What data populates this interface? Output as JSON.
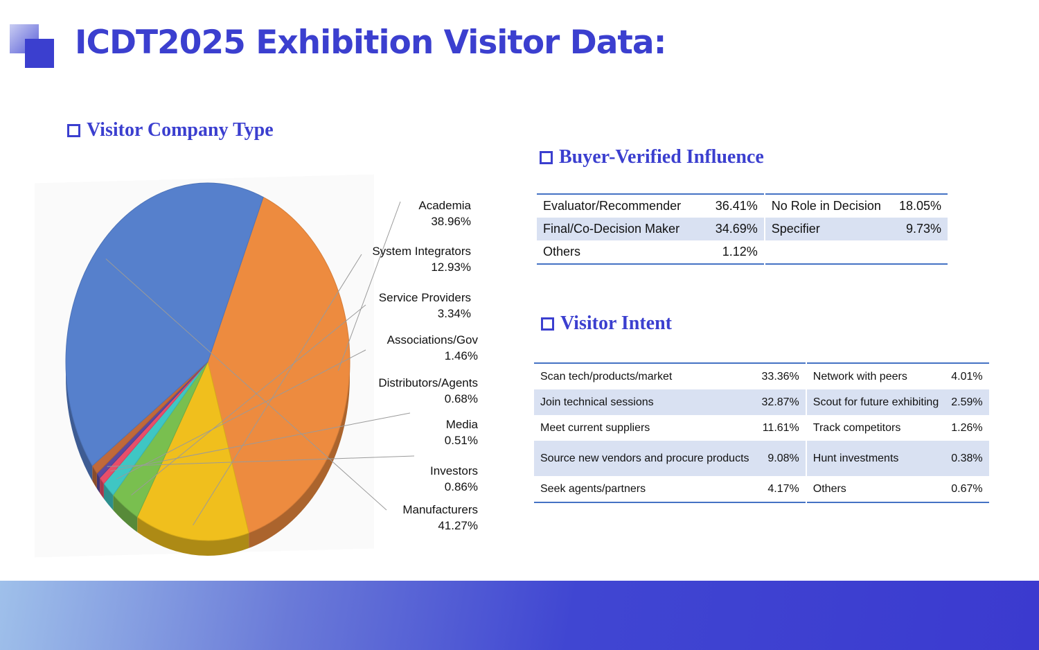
{
  "header": {
    "title": "ICDT2025 Exhibition Visitor Data:"
  },
  "sections": {
    "company_type": "Visitor Company Type",
    "influence": "Buyer-Verified Influence",
    "intent": "Visitor Intent"
  },
  "chart_data": {
    "type": "pie",
    "title": "Visitor Company Type",
    "slices": [
      {
        "label": "Academia",
        "value": 38.96,
        "display": "38.96%",
        "color": "#ed8b3f"
      },
      {
        "label": "System Integrators",
        "value": 12.93,
        "display": "12.93%",
        "color": "#f0bf1d"
      },
      {
        "label": "Service Providers",
        "value": 3.34,
        "display": "3.34%",
        "color": "#79bf4f"
      },
      {
        "label": "Associations/Gov",
        "value": 1.46,
        "display": "1.46%",
        "color": "#3fc6c4"
      },
      {
        "label": "Distributors/Agents",
        "value": 0.68,
        "display": "0.68%",
        "color": "#e84e6a"
      },
      {
        "label": "Media",
        "value": 0.51,
        "display": "0.51%",
        "color": "#5b4aa0"
      },
      {
        "label": "Investors",
        "value": 0.86,
        "display": "0.86%",
        "color": "#c0693a"
      },
      {
        "label": "Manufacturers",
        "value": 41.27,
        "display": "41.27%",
        "color": "#5680cc"
      }
    ]
  },
  "influence_table": {
    "rows": [
      {
        "a_label": "Evaluator/Recommender",
        "a_value": "36.41%",
        "b_label": "No Role in Decision",
        "b_value": "18.05%"
      },
      {
        "a_label": "Final/Co-Decision Maker",
        "a_value": "34.69%",
        "b_label": "Specifier",
        "b_value": "9.73%"
      },
      {
        "a_label": "Others",
        "a_value": "1.12%",
        "b_label": "",
        "b_value": ""
      }
    ]
  },
  "intent_table": {
    "rows": [
      {
        "a_label": "Scan tech/products/market",
        "a_value": "33.36%",
        "b_label": "Network with peers",
        "b_value": "4.01%"
      },
      {
        "a_label": "Join technical sessions",
        "a_value": "32.87%",
        "b_label": "Scout for future exhibiting",
        "b_value": "2.59%"
      },
      {
        "a_label": "Meet current suppliers",
        "a_value": "11.61%",
        "b_label": "Track competitors",
        "b_value": "1.26%"
      },
      {
        "a_label": "Source new vendors and procure products",
        "a_value": "9.08%",
        "b_label": "Hunt investments",
        "b_value": "0.38%"
      },
      {
        "a_label": "Seek agents/partners",
        "a_value": "4.17%",
        "b_label": "Others",
        "b_value": "0.67%"
      }
    ]
  },
  "colors": {
    "accent": "#3b3fcf",
    "table_rule": "#4472c4",
    "row_shade": "#d9e1f2"
  }
}
